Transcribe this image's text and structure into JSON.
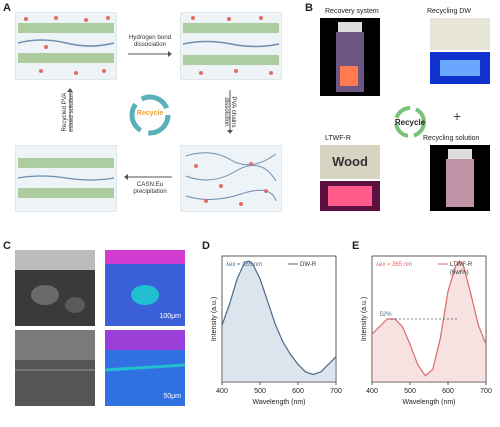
{
  "panel_labels": {
    "A": "A",
    "B": "B",
    "C": "C",
    "D": "D",
    "E": "E"
  },
  "panelA": {
    "step1": "Hydrogen bond\ndissociation",
    "step2": "PVA chains\ndissolution",
    "step3": "CASN:Eu\nprecipitation",
    "step4": "Recycled PVA\nmixed solution",
    "recycle": "Recycle"
  },
  "panelB": {
    "recovery": "Recovery system",
    "recycling_dw": "Recycling DW",
    "recycle": "Recycle",
    "plus": "+",
    "ltwf": "LTWF-R",
    "recycling_solution": "Recycling solution",
    "wood": "Wood"
  },
  "panelC": {
    "scale1": "100μm",
    "scale2": "50μm"
  },
  "chart_data": [
    {
      "type": "line",
      "id": "D",
      "xlabel": "Wavelength (nm)",
      "ylabel": "Intensity (a.u.)",
      "xlim": [
        400,
        700
      ],
      "xticks": [
        400,
        500,
        600,
        700
      ],
      "annotation": "λex = 365 nm",
      "series": [
        {
          "name": "DW-R",
          "color": "#4a6b8a",
          "x": [
            400,
            420,
            440,
            460,
            470,
            480,
            500,
            520,
            540,
            560,
            580,
            600,
            620,
            640,
            660,
            680,
            700
          ],
          "y": [
            0.45,
            0.62,
            0.82,
            0.95,
            0.96,
            0.94,
            0.82,
            0.64,
            0.46,
            0.32,
            0.22,
            0.14,
            0.08,
            0.06,
            0.08,
            0.14,
            0.2
          ]
        }
      ]
    },
    {
      "type": "line",
      "id": "E",
      "xlabel": "Wavelength (nm)",
      "ylabel": "Intensity (a.u.)",
      "xlim": [
        400,
        700
      ],
      "xticks": [
        400,
        500,
        600,
        700
      ],
      "annotation": "λex = 365 nm",
      "percent_label": "52%",
      "series": [
        {
          "name": "LTWF-R\n(6wt%)",
          "color": "#d96b6b",
          "x": [
            400,
            420,
            440,
            460,
            480,
            500,
            520,
            540,
            560,
            580,
            600,
            620,
            630,
            640,
            660,
            680,
            700
          ],
          "y": [
            0.38,
            0.44,
            0.5,
            0.5,
            0.44,
            0.3,
            0.14,
            0.05,
            0.1,
            0.35,
            0.72,
            0.92,
            0.96,
            0.93,
            0.7,
            0.45,
            0.3
          ]
        }
      ]
    }
  ],
  "colors": {
    "accent_blue": "#4a6b8a",
    "accent_red": "#d96b6b",
    "green_fiber": "#7fae6a",
    "box_bg": "#eef3f7",
    "dot": "#e36b6b"
  }
}
